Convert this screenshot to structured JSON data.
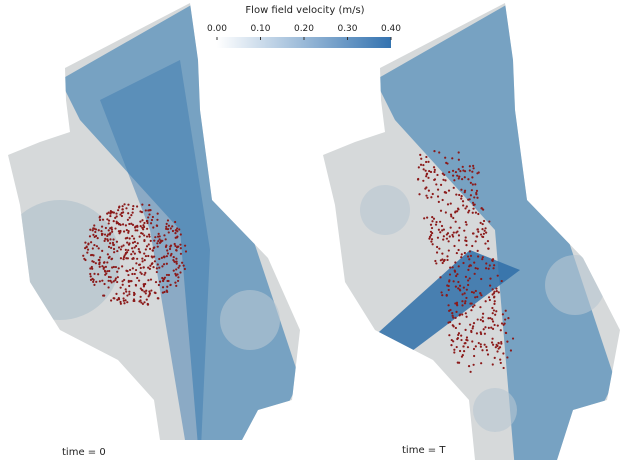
{
  "colorbar": {
    "title": "Flow field velocity (m/s)",
    "range": [
      0,
      0.4
    ],
    "ticks": [
      {
        "value": 0,
        "label": "0.00"
      },
      {
        "value": 0.1,
        "label": "0.10"
      },
      {
        "value": 0.2,
        "label": "0.20"
      },
      {
        "value": 0.3,
        "label": "0.30"
      },
      {
        "value": 0.4,
        "label": "0.40"
      }
    ]
  },
  "panels": [
    {
      "label": "time = 0"
    },
    {
      "label": "time = T"
    }
  ]
}
